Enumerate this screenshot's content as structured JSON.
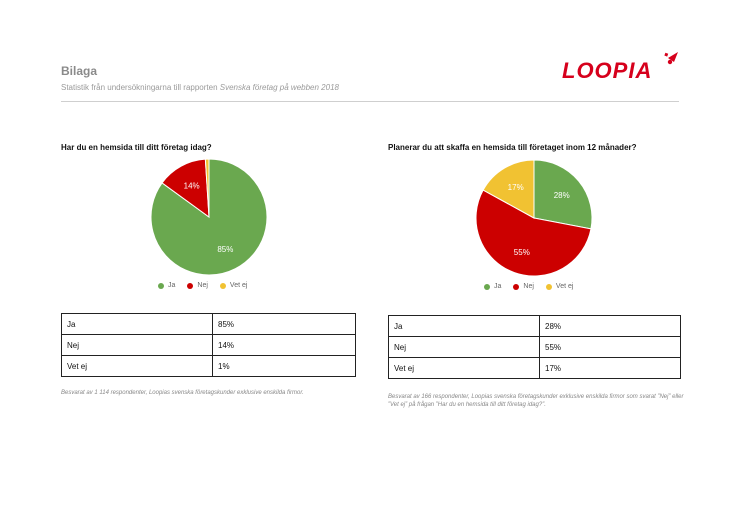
{
  "header": {
    "title": "Bilaga",
    "subtitle_prefix": "Statistik från undersökningarna till rapporten ",
    "subtitle_italic": "Svenska företag på webben 2018",
    "logo_text": "LOOPIA",
    "logo_color": "#d6001c"
  },
  "colors": {
    "ja": "#6aa84f",
    "nej": "#cc0000",
    "vetej": "#f1c232"
  },
  "chart_data": [
    {
      "type": "pie",
      "title": "Har du en hemsida till ditt företag idag?",
      "categories": [
        "Ja",
        "Nej",
        "Vet ej"
      ],
      "values": [
        85,
        14,
        1
      ],
      "slice_labels": [
        "85%",
        "14%",
        ""
      ],
      "legend": [
        "Ja",
        "Nej",
        "Vet ej"
      ],
      "legend_position": "bottom"
    },
    {
      "type": "pie",
      "title": "Planerar du att skaffa en hemsida till företaget inom 12 månader?",
      "categories": [
        "Ja",
        "Nej",
        "Vet ej"
      ],
      "values": [
        28,
        55,
        17
      ],
      "slice_labels": [
        "28%",
        "55%",
        "17%"
      ],
      "legend": [
        "Ja",
        "Nej",
        "Vet ej"
      ],
      "legend_position": "bottom"
    }
  ],
  "tables": [
    {
      "rows": [
        {
          "label": "Ja",
          "value": "85%"
        },
        {
          "label": "Nej",
          "value": "14%"
        },
        {
          "label": "Vet ej",
          "value": "1%"
        }
      ]
    },
    {
      "rows": [
        {
          "label": "Ja",
          "value": "28%"
        },
        {
          "label": "Nej",
          "value": "55%"
        },
        {
          "label": "Vet ej",
          "value": "17%"
        }
      ]
    }
  ],
  "notes": [
    "Besvarat av 1 114 respondenter, Loopias svenska företagskunder exklusive enskilda firmor.",
    "Besvarat av 166 respondenter, Loopias svenska företagskunder exklusive enskilda firmor som svarat ”Nej” eller ”Vet ej” på frågan ”Har du en hemsida till ditt företag idag?”."
  ]
}
